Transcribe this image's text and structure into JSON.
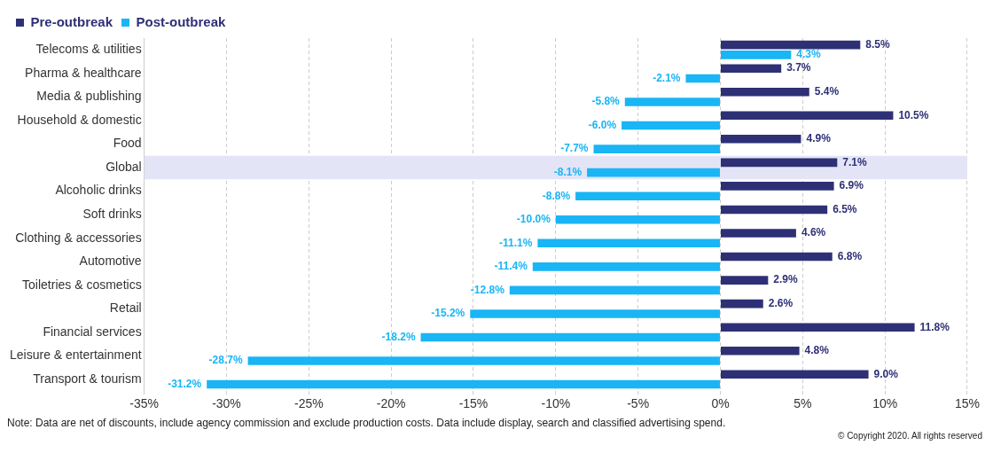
{
  "chart_data": {
    "type": "bar",
    "orientation": "horizontal",
    "categories": [
      "Telecoms & utilities",
      "Pharma & healthcare",
      "Media & publishing",
      "Household & domestic",
      "Food",
      "Global",
      "Alcoholic drinks",
      "Soft drinks",
      "Clothing & accessories",
      "Automotive",
      "Toiletries & cosmetics",
      "Retail",
      "Financial services",
      "Leisure & entertainment",
      "Transport & tourism"
    ],
    "series": [
      {
        "name": "Pre-outbreak",
        "color": "#2e3076",
        "values": [
          8.5,
          3.7,
          5.4,
          10.5,
          4.9,
          7.1,
          6.9,
          6.5,
          4.6,
          6.8,
          2.9,
          2.6,
          11.8,
          4.8,
          9.0
        ],
        "value_labels": [
          "8.5%",
          "3.7%",
          "5.4%",
          "10.5%",
          "4.9%",
          "7.1%",
          "6.9%",
          "6.5%",
          "4.6%",
          "6.8%",
          "2.9%",
          "2.6%",
          "11.8%",
          "4.8%",
          "9.0%"
        ]
      },
      {
        "name": "Post-outbreak",
        "color": "#19b5f5",
        "values": [
          4.3,
          -2.1,
          -5.8,
          -6.0,
          -7.7,
          -8.1,
          -8.8,
          -10.0,
          -11.1,
          -11.4,
          -12.8,
          -15.2,
          -18.2,
          -28.7,
          -31.2
        ],
        "value_labels": [
          "4.3%",
          "-2.1%",
          "-5.8%",
          "-6.0%",
          "-7.7%",
          "-8.1%",
          "-8.8%",
          "-10.0%",
          "-11.1%",
          "-11.4%",
          "-12.8%",
          "-15.2%",
          "-18.2%",
          "-28.7%",
          "-31.2%"
        ]
      }
    ],
    "xlim": [
      -35,
      15
    ],
    "xticks": [
      {
        "value": -35,
        "label": "-35%"
      },
      {
        "value": -30,
        "label": "-30%"
      },
      {
        "value": -25,
        "label": "-25%"
      },
      {
        "value": -20,
        "label": "-20%"
      },
      {
        "value": -15,
        "label": "-15%"
      },
      {
        "value": -10,
        "label": "-10%"
      },
      {
        "value": -5,
        "label": "-5%"
      },
      {
        "value": 0,
        "label": "0%"
      },
      {
        "value": 5,
        "label": "5%"
      },
      {
        "value": 10,
        "label": "10%"
      },
      {
        "value": 15,
        "label": "15%"
      }
    ],
    "grid": "x",
    "legend": "top left",
    "bands": [
      {
        "axis": "y",
        "from": "Global",
        "to": "Global",
        "color": "#e4e4f7"
      }
    ],
    "annotations": [
      "Note: Data are net of discounts, include agency commission and exclude production costs. Data include display, search and classified advertising spend.",
      "© Copyright 2020. All rights reserved"
    ]
  }
}
